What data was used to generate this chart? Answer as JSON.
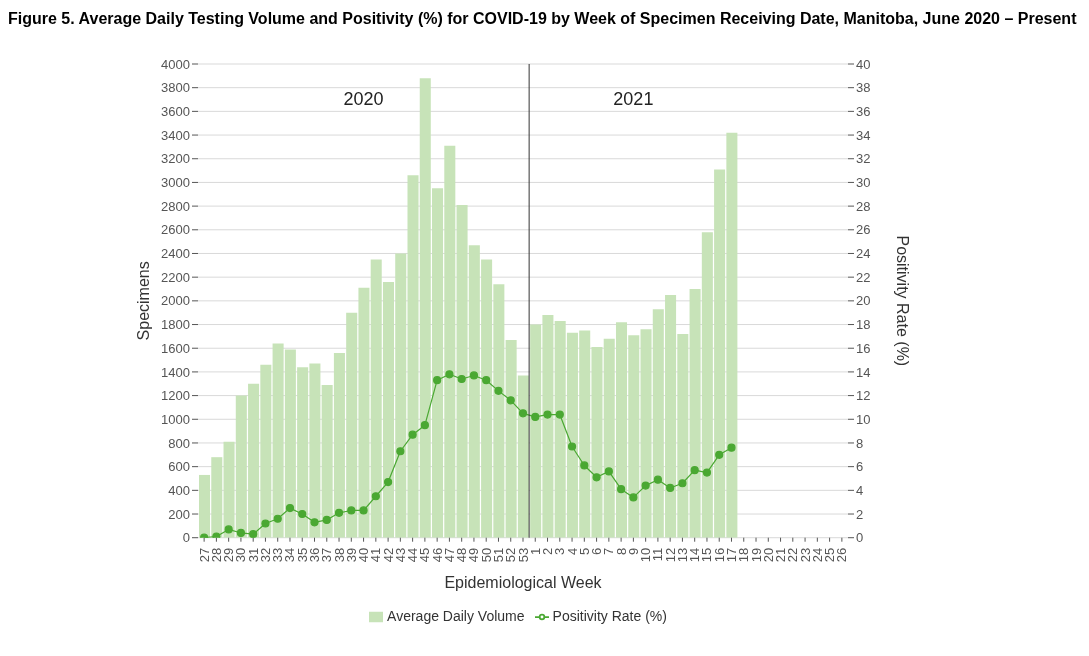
{
  "chart_data": {
    "type": "bar",
    "title": "Figure 5. Average Daily Testing Volume and Positivity (%) for COVID-19 by Week of Specimen Receiving Date, Manitoba, June 2020 – Present",
    "xlabel": "Epidemiological Week",
    "ylabel": "Specimens",
    "y2label": "Positivity Rate (%)",
    "categories": [
      "27",
      "28",
      "29",
      "30",
      "31",
      "32",
      "33",
      "34",
      "35",
      "36",
      "37",
      "38",
      "39",
      "40",
      "41",
      "42",
      "43",
      "44",
      "45",
      "46",
      "47",
      "48",
      "49",
      "50",
      "51",
      "52",
      "53",
      "1",
      "2",
      "3",
      "4",
      "5",
      "6",
      "7",
      "8",
      "9",
      "10",
      "11",
      "12",
      "13",
      "14",
      "15",
      "16",
      "17",
      "18",
      "19",
      "20",
      "21",
      "22",
      "23",
      "24",
      "25",
      "26"
    ],
    "series": [
      {
        "name": "Average Daily Volume",
        "color": "#c7e3b8",
        "values": [
          530,
          680,
          810,
          1200,
          1300,
          1460,
          1640,
          1590,
          1440,
          1470,
          1290,
          1560,
          1900,
          2110,
          2350,
          2160,
          2400,
          3060,
          3880,
          2950,
          3310,
          2810,
          2470,
          2350,
          2140,
          1670,
          1370,
          1800,
          1880,
          1830,
          1730,
          1750,
          1610,
          1680,
          1820,
          1710,
          1760,
          1930,
          2050,
          1720,
          2100,
          2580,
          3110,
          3420,
          null,
          null,
          null,
          null,
          null,
          null,
          null,
          null,
          null
        ]
      },
      {
        "name": "Positivity Rate (%)",
        "type": "line",
        "axis": "y2",
        "color": "#4aa832",
        "values": [
          0,
          0.1,
          0.7,
          0.4,
          0.3,
          1.2,
          1.6,
          2.5,
          2.0,
          1.3,
          1.5,
          2.1,
          2.3,
          2.3,
          3.5,
          4.7,
          7.3,
          8.7,
          9.5,
          13.3,
          13.8,
          13.4,
          13.7,
          13.3,
          12.4,
          11.6,
          10.5,
          10.2,
          10.4,
          10.4,
          7.7,
          6.1,
          5.1,
          5.6,
          4.1,
          3.4,
          4.4,
          4.9,
          4.2,
          4.6,
          5.7,
          5.5,
          7.0,
          7.6,
          null,
          null,
          null,
          null,
          null,
          null,
          null,
          null,
          null
        ]
      }
    ],
    "ylim": [
      0,
      4000
    ],
    "yticks": [
      0,
      200,
      400,
      600,
      800,
      1000,
      1200,
      1400,
      1600,
      1800,
      2000,
      2200,
      2400,
      2600,
      2800,
      3000,
      3200,
      3400,
      3600,
      3800,
      4000
    ],
    "y2lim": [
      0,
      40
    ],
    "y2ticks": [
      0,
      2,
      4,
      6,
      8,
      10,
      12,
      14,
      16,
      18,
      20,
      22,
      24,
      26,
      28,
      30,
      32,
      34,
      36,
      38,
      40
    ],
    "ref_lines": [
      {
        "axis": "x",
        "value": "1",
        "color": "#333333"
      }
    ],
    "annotations": [
      "2020",
      "2021"
    ],
    "grid": "y",
    "legend": "bottom",
    "marker": "circle",
    "line_style": "solid"
  }
}
